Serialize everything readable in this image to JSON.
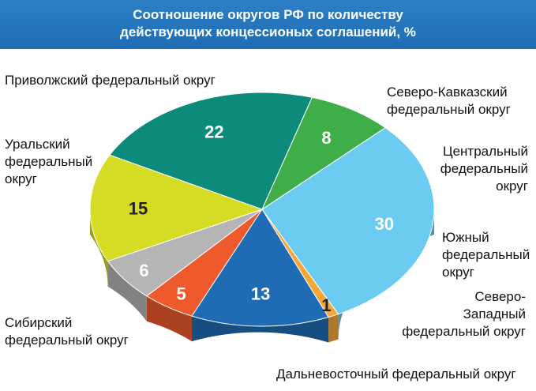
{
  "title_line1": "Соотношение округов РФ по количеству",
  "title_line2": "действующих концессионых соглашений, %",
  "chart_data": {
    "type": "pie",
    "title": "Соотношение округов РФ по количеству действующих концессионых соглашений, %",
    "slices": [
      {
        "label": "Приволжский федеральный округ",
        "value": 30,
        "color": "#6ccbf0"
      },
      {
        "label": "Северо-Кавказский федеральный округ",
        "value": 1,
        "color": "#f7a73a"
      },
      {
        "label": "Центральный федеральный округ",
        "value": 13,
        "color": "#1f6cb5"
      },
      {
        "label": "Южный федеральный округ",
        "value": 5,
        "color": "#ef5a2c"
      },
      {
        "label": "Северо-Западный федеральный округ",
        "value": 6,
        "color": "#b5b5b5"
      },
      {
        "label": "Дальневосточный федеральный округ",
        "value": 15,
        "color": "#d6dc24"
      },
      {
        "label": "Сибирский федеральный округ",
        "value": 22,
        "color": "#0d8b7a"
      },
      {
        "label": "Уральский федеральный округ",
        "value": 8,
        "color": "#3fae49"
      }
    ]
  },
  "labels": {
    "privolzhsky": "Приволжский федеральный округ",
    "sev_kav_1": "Северо-Кавказский",
    "sev_kav_2": "федеральный округ",
    "central_1": "Центральный",
    "central_2": "федеральный",
    "central_3": "округ",
    "south_1": "Южный",
    "south_2": "федеральный",
    "south_3": "округ",
    "nw_1": "Северо-",
    "nw_2": "Западный",
    "nw_3": "федеральный округ",
    "far_east": "Дальневосточный федеральный округ",
    "siberia_1": "Сибирский",
    "siberia_2": "федеральный округ",
    "ural_1": "Уральский",
    "ural_2": "федеральный",
    "ural_3": "округ"
  }
}
